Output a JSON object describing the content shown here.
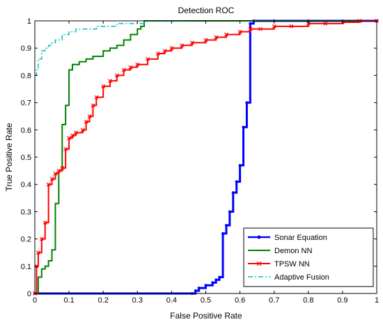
{
  "chart_data": {
    "type": "line",
    "title": "Detection ROC",
    "xlabel": "False Positive Rate",
    "ylabel": "True Positive Rate",
    "xlim": [
      0,
      1
    ],
    "ylim": [
      0,
      1
    ],
    "xticks": [
      "0",
      "0.1",
      "0.2",
      "0.3",
      "0.4",
      "0.5",
      "0.6",
      "0.7",
      "0.8",
      "0.9",
      "1"
    ],
    "yticks": [
      "0",
      "0.1",
      "0.2",
      "0.3",
      "0.4",
      "0.5",
      "0.6",
      "0.7",
      "0.8",
      "0.9",
      "1"
    ],
    "grid": false,
    "legend_position": "bottom-right",
    "series": [
      {
        "name": "Sonar Equation",
        "color": "#0000ff",
        "linestyle": "solid",
        "marker": "dot",
        "x": [
          0,
          0.46,
          0.47,
          0.48,
          0.5,
          0.52,
          0.53,
          0.54,
          0.55,
          0.56,
          0.57,
          0.58,
          0.59,
          0.6,
          0.61,
          0.62,
          0.63,
          0.64,
          0.7,
          0.8,
          0.9,
          1.0
        ],
        "y": [
          0,
          0,
          0.01,
          0.02,
          0.03,
          0.04,
          0.05,
          0.06,
          0.22,
          0.25,
          0.3,
          0.37,
          0.41,
          0.47,
          0.61,
          0.7,
          0.99,
          1.0,
          1.0,
          1.0,
          1.0,
          1.0
        ]
      },
      {
        "name": "Demon NN",
        "color": "#008000",
        "linestyle": "solid",
        "marker": "none",
        "x": [
          0,
          0.01,
          0.02,
          0.03,
          0.04,
          0.05,
          0.06,
          0.07,
          0.08,
          0.09,
          0.1,
          0.11,
          0.12,
          0.13,
          0.15,
          0.17,
          0.19,
          0.2,
          0.22,
          0.24,
          0.26,
          0.28,
          0.3,
          0.31,
          0.32,
          1.0
        ],
        "y": [
          0,
          0.06,
          0.09,
          0.1,
          0.12,
          0.16,
          0.33,
          0.45,
          0.62,
          0.69,
          0.82,
          0.84,
          0.84,
          0.85,
          0.86,
          0.87,
          0.87,
          0.89,
          0.9,
          0.91,
          0.93,
          0.95,
          0.97,
          0.98,
          1.0,
          1.0
        ]
      },
      {
        "name": "TPSW NN",
        "color": "#ff0000",
        "linestyle": "solid",
        "marker": "x",
        "x": [
          0,
          0.005,
          0.01,
          0.02,
          0.03,
          0.04,
          0.05,
          0.06,
          0.07,
          0.08,
          0.09,
          0.1,
          0.11,
          0.12,
          0.14,
          0.15,
          0.16,
          0.17,
          0.18,
          0.2,
          0.22,
          0.24,
          0.26,
          0.28,
          0.3,
          0.33,
          0.36,
          0.38,
          0.4,
          0.43,
          0.46,
          0.5,
          0.53,
          0.56,
          0.6,
          0.63,
          0.66,
          0.7,
          0.75,
          0.8,
          0.85,
          0.9,
          0.95,
          1.0
        ],
        "y": [
          0,
          0.1,
          0.15,
          0.2,
          0.26,
          0.4,
          0.42,
          0.44,
          0.45,
          0.46,
          0.53,
          0.57,
          0.58,
          0.59,
          0.6,
          0.63,
          0.65,
          0.69,
          0.72,
          0.76,
          0.78,
          0.8,
          0.82,
          0.83,
          0.84,
          0.86,
          0.88,
          0.89,
          0.9,
          0.91,
          0.92,
          0.93,
          0.94,
          0.95,
          0.96,
          0.97,
          0.97,
          0.98,
          0.98,
          0.99,
          0.99,
          0.995,
          1.0,
          1.0
        ]
      },
      {
        "name": "Adaptive Fusion",
        "color": "#00bfbf",
        "linestyle": "dashdot",
        "marker": "none",
        "x": [
          0,
          0.005,
          0.01,
          0.02,
          0.03,
          0.04,
          0.05,
          0.06,
          0.08,
          0.1,
          0.12,
          0.15,
          0.18,
          0.2,
          0.24,
          0.28,
          0.32,
          0.36,
          0.4,
          0.45
        ],
        "y": [
          0.8,
          0.82,
          0.86,
          0.89,
          0.9,
          0.91,
          0.92,
          0.93,
          0.95,
          0.96,
          0.97,
          0.97,
          0.98,
          0.98,
          0.99,
          0.99,
          1.0,
          1.0,
          1.0,
          1.0
        ]
      }
    ]
  }
}
